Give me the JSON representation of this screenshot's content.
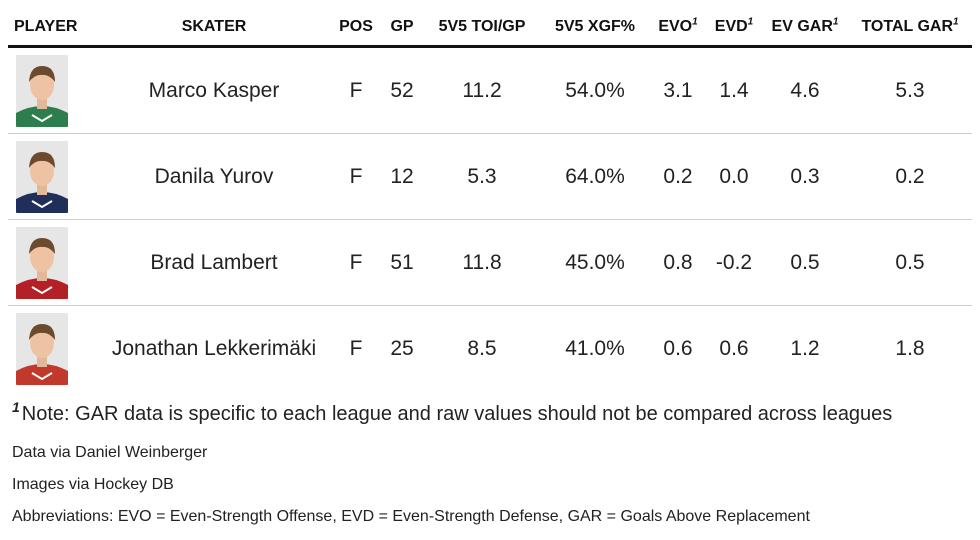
{
  "headers": {
    "player": "PLAYER",
    "skater": "SKATER",
    "pos": "POS",
    "gp": "GP",
    "toi": "5V5 TOI/GP",
    "xgf": "5V5 XGF%",
    "evo": "EVO",
    "evd": "EVD",
    "evgar": "EV GAR",
    "totalgar": "TOTAL GAR",
    "footnote_mark": "1"
  },
  "rows": [
    {
      "name": "Marco Kasper",
      "pos": "F",
      "gp": "52",
      "toi": "11.2",
      "xgf": "54.0%",
      "evo": "3.1",
      "evd": "1.4",
      "evgar": "4.6",
      "totalgar": "5.3"
    },
    {
      "name": "Danila Yurov",
      "pos": "F",
      "gp": "12",
      "toi": "5.3",
      "xgf": "64.0%",
      "evo": "0.2",
      "evd": "0.0",
      "evgar": "0.3",
      "totalgar": "0.2"
    },
    {
      "name": "Brad Lambert",
      "pos": "F",
      "gp": "51",
      "toi": "11.8",
      "xgf": "45.0%",
      "evo": "0.8",
      "evd": "-0.2",
      "evgar": "0.5",
      "totalgar": "0.5"
    },
    {
      "name": "Jonathan Lekkerimäki",
      "pos": "F",
      "gp": "25",
      "toi": "8.5",
      "xgf": "41.0%",
      "evo": "0.6",
      "evd": "0.6",
      "evgar": "1.2",
      "totalgar": "1.8"
    }
  ],
  "photo_jerseys": [
    "#2e7d4f",
    "#1f2f5a",
    "#b32025",
    "#c0392b"
  ],
  "footnote": {
    "mark": "1",
    "text": "Note: GAR data is specific to each league and raw values should not be compared across leagues"
  },
  "sources": {
    "data": "Data via Daniel Weinberger",
    "images": "Images via Hockey DB",
    "abbrev": "Abbreviations: EVO = Even-Strength Offense, EVD = Even-Strength Defense, GAR = Goals Above Replacement"
  }
}
